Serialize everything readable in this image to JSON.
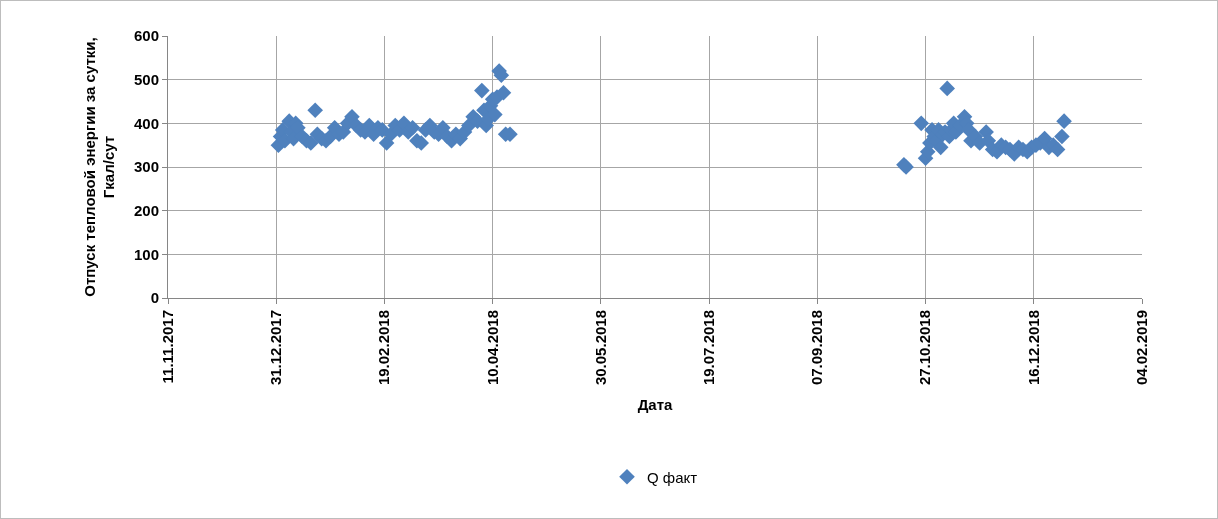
{
  "chart_data": {
    "type": "scatter",
    "xlabel": "Дата",
    "ylabel": "Отпуск тепловой энергии за сутки, Гкал/сут",
    "marker": "diamond",
    "grid": true,
    "legend": "bottom",
    "xlim": [
      "2017-11-11",
      "2019-02-04"
    ],
    "xticks": [
      {
        "value": "2017-11-11",
        "label": "11.11.2017"
      },
      {
        "value": "2017-12-31",
        "label": "31.12.2017"
      },
      {
        "value": "2018-02-19",
        "label": "19.02.2018"
      },
      {
        "value": "2018-04-10",
        "label": "10.04.2018"
      },
      {
        "value": "2018-05-30",
        "label": "30.05.2018"
      },
      {
        "value": "2018-07-19",
        "label": "19.07.2018"
      },
      {
        "value": "2018-09-07",
        "label": "07.09.2018"
      },
      {
        "value": "2018-10-27",
        "label": "27.10.2018"
      },
      {
        "value": "2018-12-16",
        "label": "16.12.2018"
      },
      {
        "value": "2019-02-04",
        "label": "04.02.2019"
      }
    ],
    "ylim": [
      0,
      600
    ],
    "yticks": [
      0,
      100,
      200,
      300,
      400,
      500,
      600
    ],
    "series": [
      {
        "name": "Q факт",
        "color": "#4f81bd",
        "x": [
          "2018-01-01",
          "2018-01-02",
          "2018-01-03",
          "2018-01-04",
          "2018-01-06",
          "2018-01-07",
          "2018-01-08",
          "2018-01-09",
          "2018-01-10",
          "2018-01-12",
          "2018-01-14",
          "2018-01-16",
          "2018-01-18",
          "2018-01-19",
          "2018-01-21",
          "2018-01-23",
          "2018-01-25",
          "2018-01-27",
          "2018-01-29",
          "2018-01-31",
          "2018-02-02",
          "2018-02-04",
          "2018-02-06",
          "2018-02-08",
          "2018-02-10",
          "2018-02-12",
          "2018-02-14",
          "2018-02-16",
          "2018-02-18",
          "2018-02-20",
          "2018-02-22",
          "2018-02-24",
          "2018-02-26",
          "2018-02-28",
          "2018-03-02",
          "2018-03-04",
          "2018-03-06",
          "2018-03-08",
          "2018-03-10",
          "2018-03-12",
          "2018-03-14",
          "2018-03-16",
          "2018-03-18",
          "2018-03-20",
          "2018-03-22",
          "2018-03-24",
          "2018-03-26",
          "2018-03-28",
          "2018-03-30",
          "2018-04-01",
          "2018-04-03",
          "2018-04-05",
          "2018-04-06",
          "2018-04-07",
          "2018-04-08",
          "2018-04-09",
          "2018-04-10",
          "2018-04-11",
          "2018-04-12",
          "2018-04-13",
          "2018-04-14",
          "2018-04-15",
          "2018-04-16",
          "2018-04-18",
          "2018-10-17",
          "2018-10-18",
          "2018-10-25",
          "2018-10-27",
          "2018-10-28",
          "2018-10-29",
          "2018-10-30",
          "2018-10-31",
          "2018-11-01",
          "2018-11-02",
          "2018-11-03",
          "2018-11-04",
          "2018-11-05",
          "2018-11-06",
          "2018-11-07",
          "2018-11-08",
          "2018-11-09",
          "2018-11-10",
          "2018-11-12",
          "2018-11-14",
          "2018-11-15",
          "2018-11-16",
          "2018-11-17",
          "2018-11-19",
          "2018-11-21",
          "2018-11-24",
          "2018-11-25",
          "2018-11-27",
          "2018-11-29",
          "2018-12-01",
          "2018-12-03",
          "2018-12-05",
          "2018-12-07",
          "2018-12-09",
          "2018-12-11",
          "2018-12-13",
          "2018-12-15",
          "2018-12-17",
          "2018-12-19",
          "2018-12-21",
          "2018-12-23",
          "2018-12-25",
          "2018-12-27",
          "2018-12-29",
          "2018-12-30"
        ],
        "values": [
          350,
          370,
          385,
          360,
          405,
          380,
          365,
          400,
          390,
          370,
          360,
          355,
          430,
          375,
          365,
          360,
          370,
          390,
          375,
          380,
          400,
          415,
          395,
          385,
          380,
          395,
          375,
          390,
          385,
          355,
          375,
          395,
          385,
          400,
          380,
          390,
          360,
          355,
          385,
          395,
          380,
          375,
          390,
          370,
          360,
          375,
          365,
          380,
          395,
          415,
          405,
          475,
          430,
          395,
          410,
          440,
          455,
          420,
          460,
          520,
          510,
          470,
          375,
          375,
          305,
          300,
          400,
          320,
          335,
          355,
          385,
          370,
          360,
          385,
          345,
          375,
          380,
          480,
          370,
          385,
          400,
          380,
          395,
          415,
          400,
          385,
          360,
          370,
          355,
          380,
          360,
          340,
          335,
          350,
          345,
          340,
          330,
          345,
          340,
          335,
          345,
          350,
          355,
          365,
          345,
          350,
          340,
          370,
          405
        ]
      }
    ]
  }
}
